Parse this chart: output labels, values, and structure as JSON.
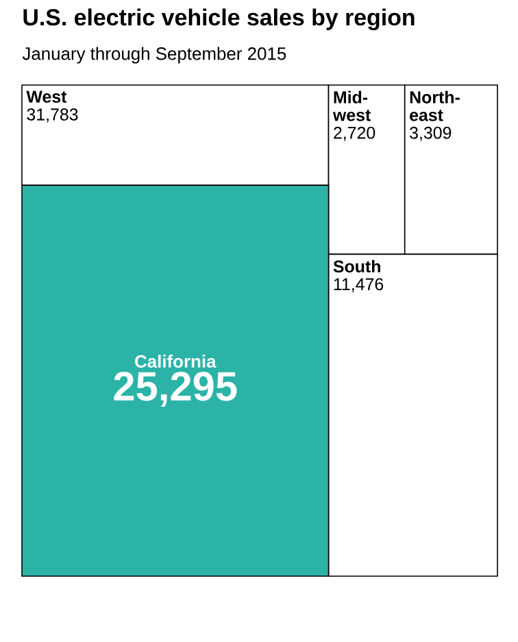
{
  "chart_data": {
    "type": "other",
    "title": "U.S. electric vehicle sales by region",
    "subtitle": "January through September 2015",
    "categories": [
      "West",
      "Mid-west",
      "North-east",
      "South",
      "California"
    ],
    "values": [
      31783,
      2720,
      3309,
      11476,
      25295
    ],
    "value_labels": [
      "31,783",
      "2,720",
      "3,309",
      "11,476",
      "25,295"
    ],
    "colors": [
      "#ffffff",
      "#ffffff",
      "#ffffff",
      "#ffffff",
      "#2bb3a8"
    ]
  }
}
